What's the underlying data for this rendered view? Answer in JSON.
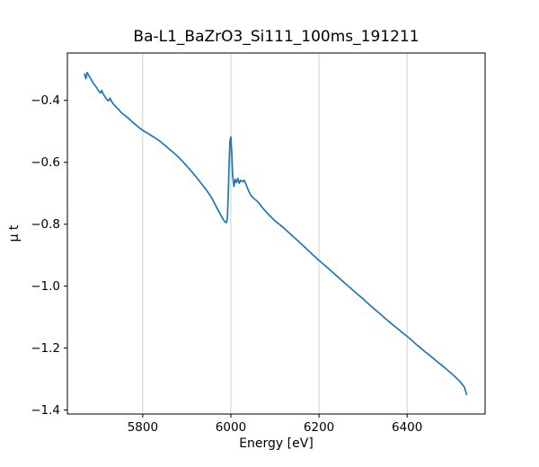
{
  "chart_data": {
    "type": "line",
    "title": "Ba-L1_BaZrO3_Si111_100ms_191211",
    "xlabel": "Energy [eV]",
    "ylabel": "μ t",
    "xlim": [
      5629,
      6577
    ],
    "ylim": [
      -1.413,
      -0.247
    ],
    "xticks": [
      5800,
      6000,
      6200,
      6400
    ],
    "yticks": [
      -0.4,
      -0.6,
      -0.8,
      -1.0,
      -1.2,
      -1.4
    ],
    "grid": "vertical",
    "legend_position": "none",
    "line_color": "#1f77b4",
    "grid_color": "#cccccc",
    "background": "#ffffff",
    "series": [
      {
        "name": "μ t vs Energy",
        "x": [
          5668,
          5671,
          5674,
          5677,
          5680,
          5684,
          5688,
          5692,
          5696,
          5700,
          5704,
          5707,
          5710,
          5714,
          5718,
          5722,
          5726,
          5730,
          5734,
          5738,
          5742,
          5746,
          5750,
          5755,
          5760,
          5765,
          5770,
          5775,
          5780,
          5790,
          5800,
          5810,
          5820,
          5830,
          5840,
          5850,
          5860,
          5870,
          5880,
          5890,
          5900,
          5910,
          5920,
          5930,
          5940,
          5950,
          5958,
          5965,
          5972,
          5978,
          5983,
          5987,
          5990,
          5992,
          5994,
          5996,
          5998,
          6000,
          6002,
          6004,
          6007,
          6010,
          6013,
          6016,
          6019,
          6022,
          6026,
          6030,
          6034,
          6038,
          6042,
          6046,
          6050,
          6055,
          6060,
          6065,
          6070,
          6080,
          6090,
          6100,
          6110,
          6120,
          6130,
          6140,
          6150,
          6160,
          6170,
          6180,
          6190,
          6200,
          6210,
          6220,
          6230,
          6240,
          6250,
          6260,
          6270,
          6280,
          6290,
          6300,
          6310,
          6320,
          6330,
          6340,
          6350,
          6360,
          6370,
          6380,
          6390,
          6400,
          6410,
          6420,
          6430,
          6440,
          6450,
          6460,
          6470,
          6480,
          6490,
          6500,
          6510,
          6520,
          6530,
          6535
        ],
        "y": [
          -0.315,
          -0.33,
          -0.31,
          -0.318,
          -0.325,
          -0.335,
          -0.345,
          -0.352,
          -0.36,
          -0.37,
          -0.376,
          -0.368,
          -0.378,
          -0.388,
          -0.396,
          -0.402,
          -0.393,
          -0.405,
          -0.413,
          -0.419,
          -0.425,
          -0.43,
          -0.438,
          -0.444,
          -0.449,
          -0.455,
          -0.461,
          -0.468,
          -0.474,
          -0.486,
          -0.497,
          -0.505,
          -0.514,
          -0.523,
          -0.533,
          -0.545,
          -0.557,
          -0.569,
          -0.582,
          -0.596,
          -0.612,
          -0.628,
          -0.645,
          -0.663,
          -0.681,
          -0.701,
          -0.719,
          -0.738,
          -0.757,
          -0.773,
          -0.785,
          -0.793,
          -0.795,
          -0.78,
          -0.71,
          -0.61,
          -0.53,
          -0.518,
          -0.57,
          -0.64,
          -0.678,
          -0.655,
          -0.665,
          -0.652,
          -0.668,
          -0.658,
          -0.663,
          -0.658,
          -0.67,
          -0.684,
          -0.698,
          -0.708,
          -0.714,
          -0.72,
          -0.726,
          -0.734,
          -0.744,
          -0.76,
          -0.775,
          -0.789,
          -0.8,
          -0.812,
          -0.825,
          -0.838,
          -0.851,
          -0.864,
          -0.877,
          -0.891,
          -0.904,
          -0.917,
          -0.929,
          -0.941,
          -0.954,
          -0.967,
          -0.979,
          -0.992,
          -1.004,
          -1.017,
          -1.029,
          -1.041,
          -1.054,
          -1.067,
          -1.079,
          -1.091,
          -1.104,
          -1.116,
          -1.128,
          -1.139,
          -1.151,
          -1.162,
          -1.174,
          -1.187,
          -1.199,
          -1.211,
          -1.222,
          -1.234,
          -1.246,
          -1.257,
          -1.269,
          -1.281,
          -1.294,
          -1.308,
          -1.326,
          -1.35
        ]
      }
    ]
  }
}
